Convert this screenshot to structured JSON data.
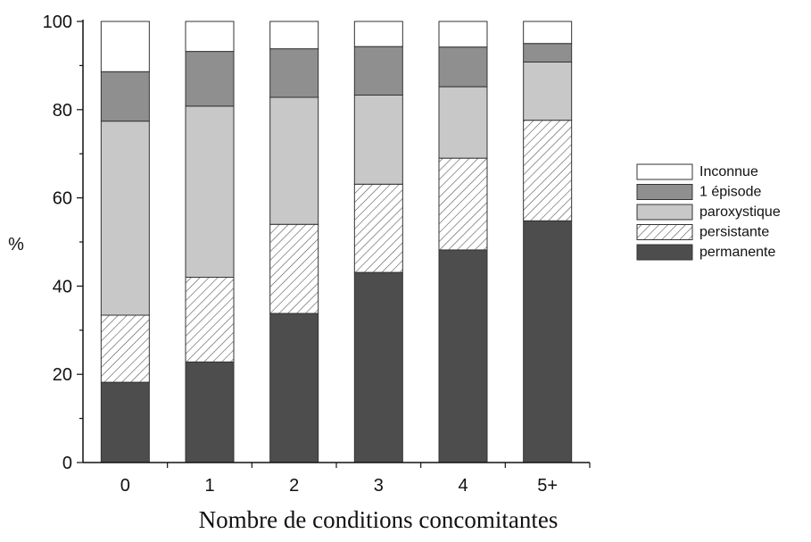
{
  "chart_data": {
    "type": "bar",
    "stacked": true,
    "title": "",
    "xlabel": "Nombre de conditions concomitantes",
    "ylabel": "%",
    "ylim": [
      0,
      100
    ],
    "yticks": [
      0,
      20,
      40,
      60,
      80,
      100
    ],
    "categories": [
      "0",
      "1",
      "2",
      "3",
      "4",
      "5+"
    ],
    "series": [
      {
        "name": "permanente",
        "values": [
          18.2,
          22.8,
          33.8,
          43.1,
          48.2,
          54.8
        ],
        "color": "#4d4d4d",
        "pattern": "solid"
      },
      {
        "name": "persistante",
        "values": [
          15.2,
          19.2,
          20.2,
          20.0,
          20.8,
          22.8
        ],
        "color": "#ffffff",
        "pattern": "hatch"
      },
      {
        "name": "paroxystique",
        "values": [
          44.0,
          38.8,
          28.8,
          20.2,
          16.2,
          13.2
        ],
        "color": "#c8c8c8",
        "pattern": "solid"
      },
      {
        "name": "1 épisode",
        "values": [
          11.2,
          12.4,
          11.0,
          11.0,
          9.0,
          4.2
        ],
        "color": "#8f8f8f",
        "pattern": "solid"
      },
      {
        "name": "Inconnue",
        "values": [
          11.4,
          6.8,
          6.2,
          5.7,
          5.8,
          5.0
        ],
        "color": "#ffffff",
        "pattern": "solid"
      }
    ],
    "legend_order": [
      "Inconnue",
      "1 épisode",
      "paroxystique",
      "persistante",
      "permanente"
    ],
    "legend_position": "right",
    "grid": false
  }
}
